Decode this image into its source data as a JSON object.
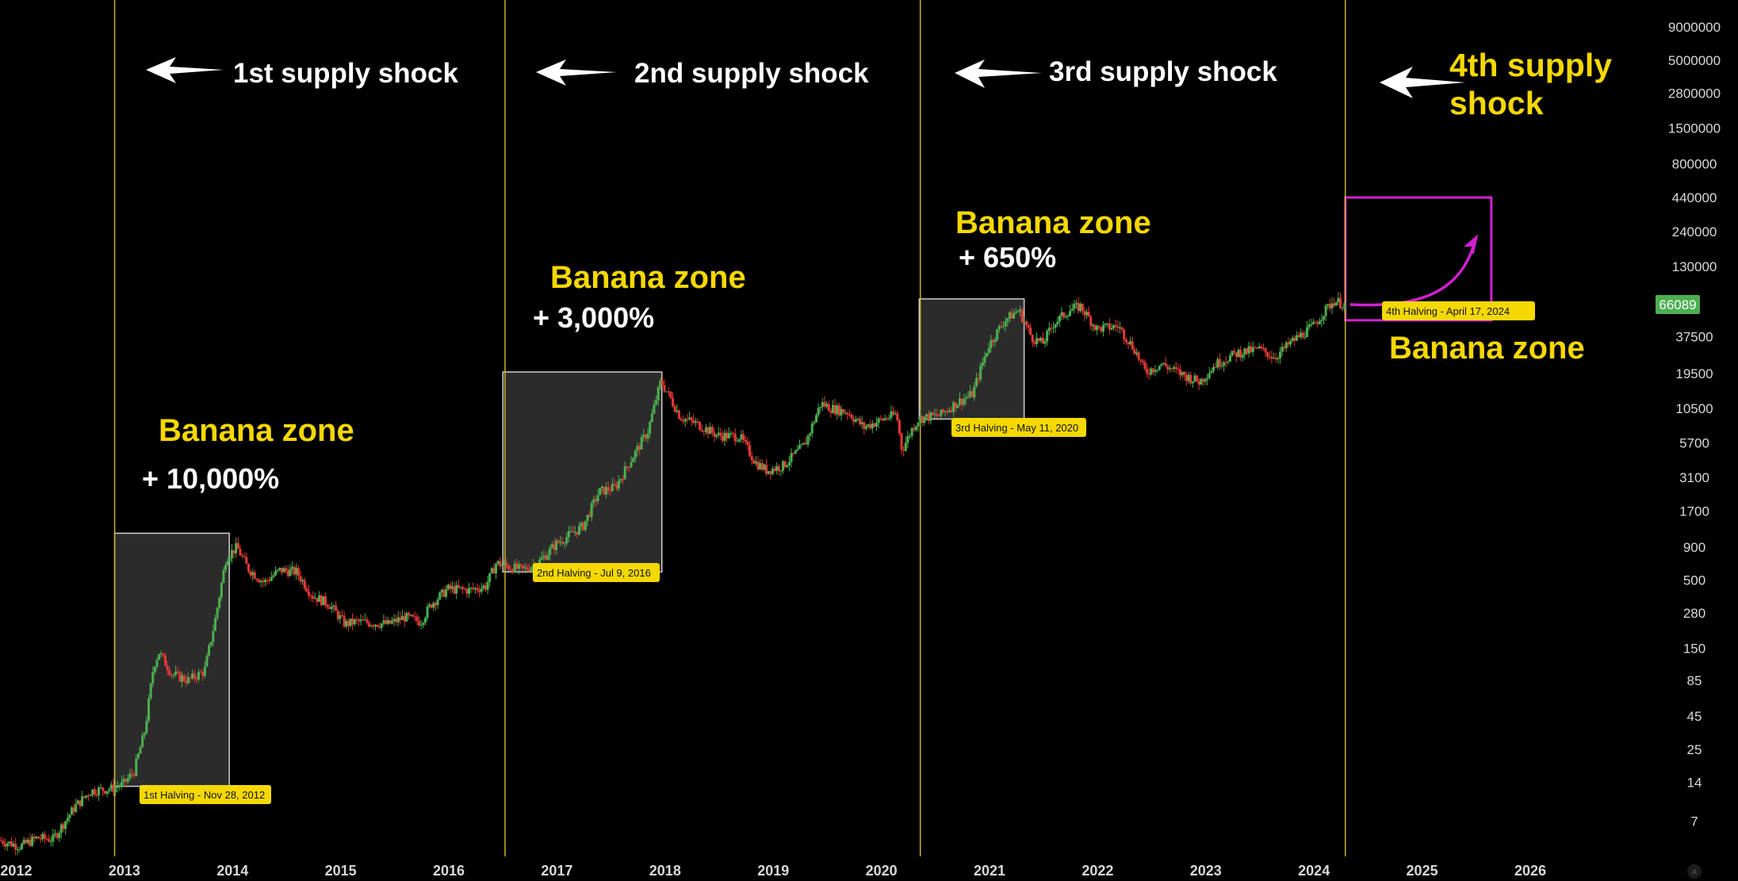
{
  "chart_data": {
    "type": "candlestick",
    "scale": "log",
    "xlim": [
      2011.85,
      2027.1
    ],
    "ylim": [
      3.5,
      13000000
    ],
    "y_ticks": [
      7,
      14,
      25,
      45,
      85,
      150,
      280,
      500,
      900,
      1700,
      3100,
      5700,
      10500,
      19500,
      37500,
      130000,
      240000,
      440000,
      800000,
      1500000,
      2800000,
      5000000,
      9000000
    ],
    "y_tick_labels": [
      "7",
      "14",
      "25",
      "45",
      "85",
      "150",
      "280",
      "500",
      "900",
      "1700",
      "3100",
      "5700",
      "10500",
      "19500",
      "37500",
      "130000",
      "240000",
      "440000",
      "800000",
      "1500000",
      "2800000",
      "5000000",
      "9000000"
    ],
    "x_ticks": [
      2012,
      2013,
      2014,
      2015,
      2016,
      2017,
      2018,
      2019,
      2020,
      2021,
      2022,
      2023,
      2024,
      2025,
      2026
    ],
    "x_tick_labels": [
      "2012",
      "2013",
      "2014",
      "2015",
      "2016",
      "2017",
      "2018",
      "2019",
      "2020",
      "2021",
      "2022",
      "2023",
      "2024",
      "2025",
      "2026"
    ],
    "last_price": "66089",
    "last_price_value": 66089,
    "price_path": [
      [
        2011.85,
        5
      ],
      [
        2012.05,
        4.5
      ],
      [
        2012.2,
        5.2
      ],
      [
        2012.35,
        5.1
      ],
      [
        2012.55,
        9
      ],
      [
        2012.7,
        12
      ],
      [
        2012.9,
        12.5
      ],
      [
        2013.0,
        13.5
      ],
      [
        2013.1,
        17
      ],
      [
        2013.2,
        35
      ],
      [
        2013.28,
        110
      ],
      [
        2013.33,
        140
      ],
      [
        2013.45,
        95
      ],
      [
        2013.6,
        85
      ],
      [
        2013.75,
        100
      ],
      [
        2013.85,
        250
      ],
      [
        2013.95,
        750
      ],
      [
        2014.05,
        900
      ],
      [
        2014.15,
        620
      ],
      [
        2014.3,
        480
      ],
      [
        2014.45,
        600
      ],
      [
        2014.6,
        580
      ],
      [
        2014.75,
        380
      ],
      [
        2014.9,
        330
      ],
      [
        2015.05,
        230
      ],
      [
        2015.15,
        240
      ],
      [
        2015.3,
        235
      ],
      [
        2015.45,
        230
      ],
      [
        2015.6,
        260
      ],
      [
        2015.75,
        240
      ],
      [
        2015.85,
        330
      ],
      [
        2016.0,
        430
      ],
      [
        2016.2,
        420
      ],
      [
        2016.35,
        450
      ],
      [
        2016.45,
        680
      ],
      [
        2016.52,
        650
      ],
      [
        2016.7,
        600
      ],
      [
        2016.85,
        700
      ],
      [
        2017.0,
        950
      ],
      [
        2017.15,
        1150
      ],
      [
        2017.25,
        1300
      ],
      [
        2017.4,
        2400
      ],
      [
        2017.55,
        2600
      ],
      [
        2017.7,
        4300
      ],
      [
        2017.85,
        7000
      ],
      [
        2017.97,
        17000
      ],
      [
        2018.05,
        13000
      ],
      [
        2018.15,
        9000
      ],
      [
        2018.3,
        8000
      ],
      [
        2018.5,
        6500
      ],
      [
        2018.7,
        6400
      ],
      [
        2018.85,
        4000
      ],
      [
        2018.95,
        3500
      ],
      [
        2019.1,
        3800
      ],
      [
        2019.3,
        5500
      ],
      [
        2019.45,
        11500
      ],
      [
        2019.55,
        10500
      ],
      [
        2019.7,
        9800
      ],
      [
        2019.85,
        7500
      ],
      [
        2020.0,
        8500
      ],
      [
        2020.15,
        9500
      ],
      [
        2020.2,
        5000
      ],
      [
        2020.3,
        7500
      ],
      [
        2020.36,
        8800
      ],
      [
        2020.55,
        9300
      ],
      [
        2020.7,
        11500
      ],
      [
        2020.85,
        13500
      ],
      [
        2021.0,
        32000
      ],
      [
        2021.15,
        50000
      ],
      [
        2021.28,
        60000
      ],
      [
        2021.4,
        37000
      ],
      [
        2021.5,
        33000
      ],
      [
        2021.6,
        47000
      ],
      [
        2021.75,
        60000
      ],
      [
        2021.85,
        64000
      ],
      [
        2022.0,
        43000
      ],
      [
        2022.2,
        45000
      ],
      [
        2022.35,
        30000
      ],
      [
        2022.45,
        20000
      ],
      [
        2022.6,
        23000
      ],
      [
        2022.8,
        19000
      ],
      [
        2022.95,
        16800
      ],
      [
        2023.1,
        23000
      ],
      [
        2023.3,
        28000
      ],
      [
        2023.5,
        30000
      ],
      [
        2023.65,
        26000
      ],
      [
        2023.8,
        34000
      ],
      [
        2024.0,
        45000
      ],
      [
        2024.15,
        65000
      ],
      [
        2024.2,
        71000
      ],
      [
        2024.29,
        66089
      ]
    ],
    "events": [
      {
        "label": "1st Halving - Nov 28, 2012",
        "x": 2012.91
      },
      {
        "label": "2nd Halving - Jul 9, 2016",
        "x": 2016.52
      },
      {
        "label": "3rd Halving - May 11, 2020",
        "x": 2020.36
      },
      {
        "label": "4th Halving - April 17, 2024",
        "x": 2024.29
      }
    ],
    "zones": [
      {
        "x0": 2012.91,
        "x1": 2013.97,
        "y0": 13,
        "y1": 1150
      },
      {
        "x0": 2016.5,
        "x1": 2017.97,
        "y0": 580,
        "y1": 20000
      },
      {
        "x0": 2020.35,
        "x1": 2021.32,
        "y0": 8700,
        "y1": 73000
      },
      {
        "x0": 2024.29,
        "x1": 2025.64,
        "y0": 50000,
        "y1": 440000,
        "projected": true
      }
    ]
  },
  "annotations": {
    "shock1": "1st supply shock",
    "shock2": "2nd supply shock",
    "shock3": "3rd supply shock",
    "shock4_line1": "4th supply",
    "shock4_line2": "shock",
    "zone1_title": "Banana zone",
    "zone1_gain": "+ 10,000%",
    "zone2_title": "Banana zone",
    "zone2_gain": "+ 3,000%",
    "zone3_title": "Banana zone",
    "zone3_gain": "+ 650%",
    "zone4_title": "Banana zone"
  },
  "colors": {
    "background": "#000000",
    "up": "#4caf50",
    "down": "#e53935",
    "halving_line": "#c9b030",
    "label_yellow": "#f5d800",
    "zone_fill": "#333333",
    "zone_border": "#cfcfcf",
    "projection": "#d21fd2",
    "price_badge": "#4caf50"
  },
  "watermark_icon": "tradingview-logo-icon"
}
